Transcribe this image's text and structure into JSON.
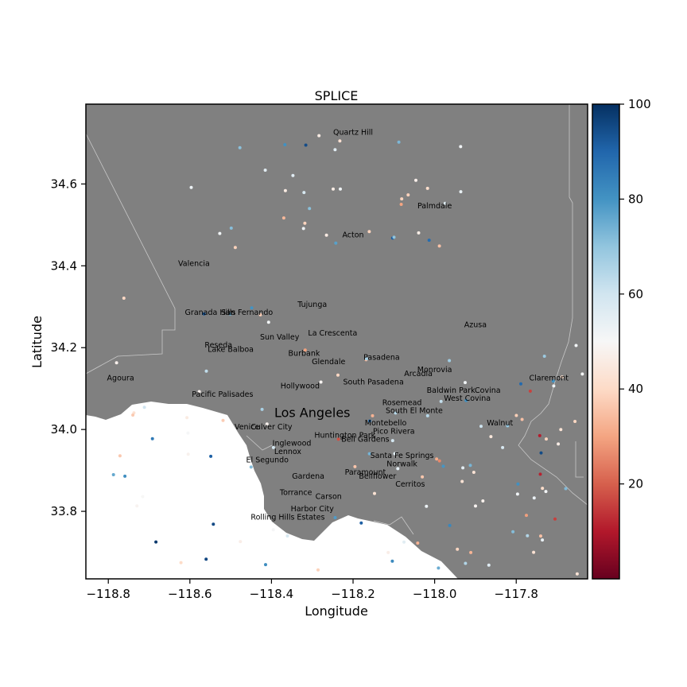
{
  "map": {
    "title": "SPLICE",
    "xlabel": "Longitude",
    "ylabel": "Latitude",
    "x_ticks": [
      "−118.8",
      "−118.6",
      "−118.4",
      "−118.2",
      "−118.0",
      "−117.8"
    ],
    "y_ticks": [
      "33.8",
      "34.0",
      "34.2",
      "34.4",
      "34.6"
    ],
    "extent": {
      "lon_min": -118.855,
      "lon_max": -117.625,
      "lat_min": 33.635,
      "lat_max": 34.795
    },
    "land_color": "#808080",
    "water_color": "#ffffff",
    "boundary_color": "#bdbdbd"
  },
  "colorbar": {
    "ticks": [
      "20",
      "40",
      "60",
      "80",
      "100"
    ],
    "min": 0,
    "max": 100,
    "colormap": "RdBu"
  },
  "places": [
    {
      "name": "Quartz Hill",
      "lon": -118.2,
      "lat": 34.72
    },
    {
      "name": "Palmdale",
      "lon": -118.0,
      "lat": 34.54
    },
    {
      "name": "Acton",
      "lon": -118.2,
      "lat": 34.47
    },
    {
      "name": "Valencia",
      "lon": -118.59,
      "lat": 34.4
    },
    {
      "name": "Tujunga",
      "lon": -118.3,
      "lat": 34.3
    },
    {
      "name": "Granada Hills",
      "lon": -118.55,
      "lat": 34.28
    },
    {
      "name": "San Fernando",
      "lon": -118.46,
      "lat": 34.28
    },
    {
      "name": "Azusa",
      "lon": -117.9,
      "lat": 34.25
    },
    {
      "name": "La Crescenta",
      "lon": -118.25,
      "lat": 34.23
    },
    {
      "name": "Sun Valley",
      "lon": -118.38,
      "lat": 34.22
    },
    {
      "name": "Reseda",
      "lon": -118.53,
      "lat": 34.2
    },
    {
      "name": "Lake Balboa",
      "lon": -118.5,
      "lat": 34.19
    },
    {
      "name": "Burbank",
      "lon": -118.32,
      "lat": 34.18
    },
    {
      "name": "Pasadena",
      "lon": -118.13,
      "lat": 34.17
    },
    {
      "name": "Glendale",
      "lon": -118.26,
      "lat": 34.16
    },
    {
      "name": "Monrovia",
      "lon": -118.0,
      "lat": 34.14
    },
    {
      "name": "Arcadia",
      "lon": -118.04,
      "lat": 34.13
    },
    {
      "name": "Agoura",
      "lon": -118.77,
      "lat": 34.12
    },
    {
      "name": "Claremont",
      "lon": -117.72,
      "lat": 34.12
    },
    {
      "name": "South Pasadena",
      "lon": -118.15,
      "lat": 34.11
    },
    {
      "name": "Hollywood",
      "lon": -118.33,
      "lat": 34.1
    },
    {
      "name": "Baldwin Park",
      "lon": -117.96,
      "lat": 34.09
    },
    {
      "name": "Covina",
      "lon": -117.87,
      "lat": 34.09
    },
    {
      "name": "Pacific Palisades",
      "lon": -118.52,
      "lat": 34.08
    },
    {
      "name": "West Covina",
      "lon": -117.92,
      "lat": 34.07
    },
    {
      "name": "Rosemead",
      "lon": -118.08,
      "lat": 34.06
    },
    {
      "name": "South El Monte",
      "lon": -118.05,
      "lat": 34.04
    },
    {
      "name": "Los Angeles",
      "lon": -118.3,
      "lat": 34.03,
      "big": true
    },
    {
      "name": "Montebello",
      "lon": -118.12,
      "lat": 34.01
    },
    {
      "name": "Walnut",
      "lon": -117.84,
      "lat": 34.01
    },
    {
      "name": "Culver City",
      "lon": -118.4,
      "lat": 34.0
    },
    {
      "name": "Venice",
      "lon": -118.46,
      "lat": 34.0
    },
    {
      "name": "Pico Rivera",
      "lon": -118.1,
      "lat": 33.99
    },
    {
      "name": "Huntington Park",
      "lon": -118.22,
      "lat": 33.98
    },
    {
      "name": "Bell Gardens",
      "lon": -118.17,
      "lat": 33.97
    },
    {
      "name": "Inglewood",
      "lon": -118.35,
      "lat": 33.96
    },
    {
      "name": "Lennox",
      "lon": -118.36,
      "lat": 33.94
    },
    {
      "name": "Santa Fe Springs",
      "lon": -118.08,
      "lat": 33.93
    },
    {
      "name": "El Segundo",
      "lon": -118.41,
      "lat": 33.92
    },
    {
      "name": "Norwalk",
      "lon": -118.08,
      "lat": 33.91
    },
    {
      "name": "Paramount",
      "lon": -118.17,
      "lat": 33.89
    },
    {
      "name": "Bellflower",
      "lon": -118.14,
      "lat": 33.88
    },
    {
      "name": "Gardena",
      "lon": -118.31,
      "lat": 33.88
    },
    {
      "name": "Cerritos",
      "lon": -118.06,
      "lat": 33.86
    },
    {
      "name": "Torrance",
      "lon": -118.34,
      "lat": 33.84
    },
    {
      "name": "Carson",
      "lon": -118.26,
      "lat": 33.83
    },
    {
      "name": "Harbor City",
      "lon": -118.3,
      "lat": 33.8
    },
    {
      "name": "Rolling Hills Estates",
      "lon": -118.36,
      "lat": 33.78
    }
  ]
}
